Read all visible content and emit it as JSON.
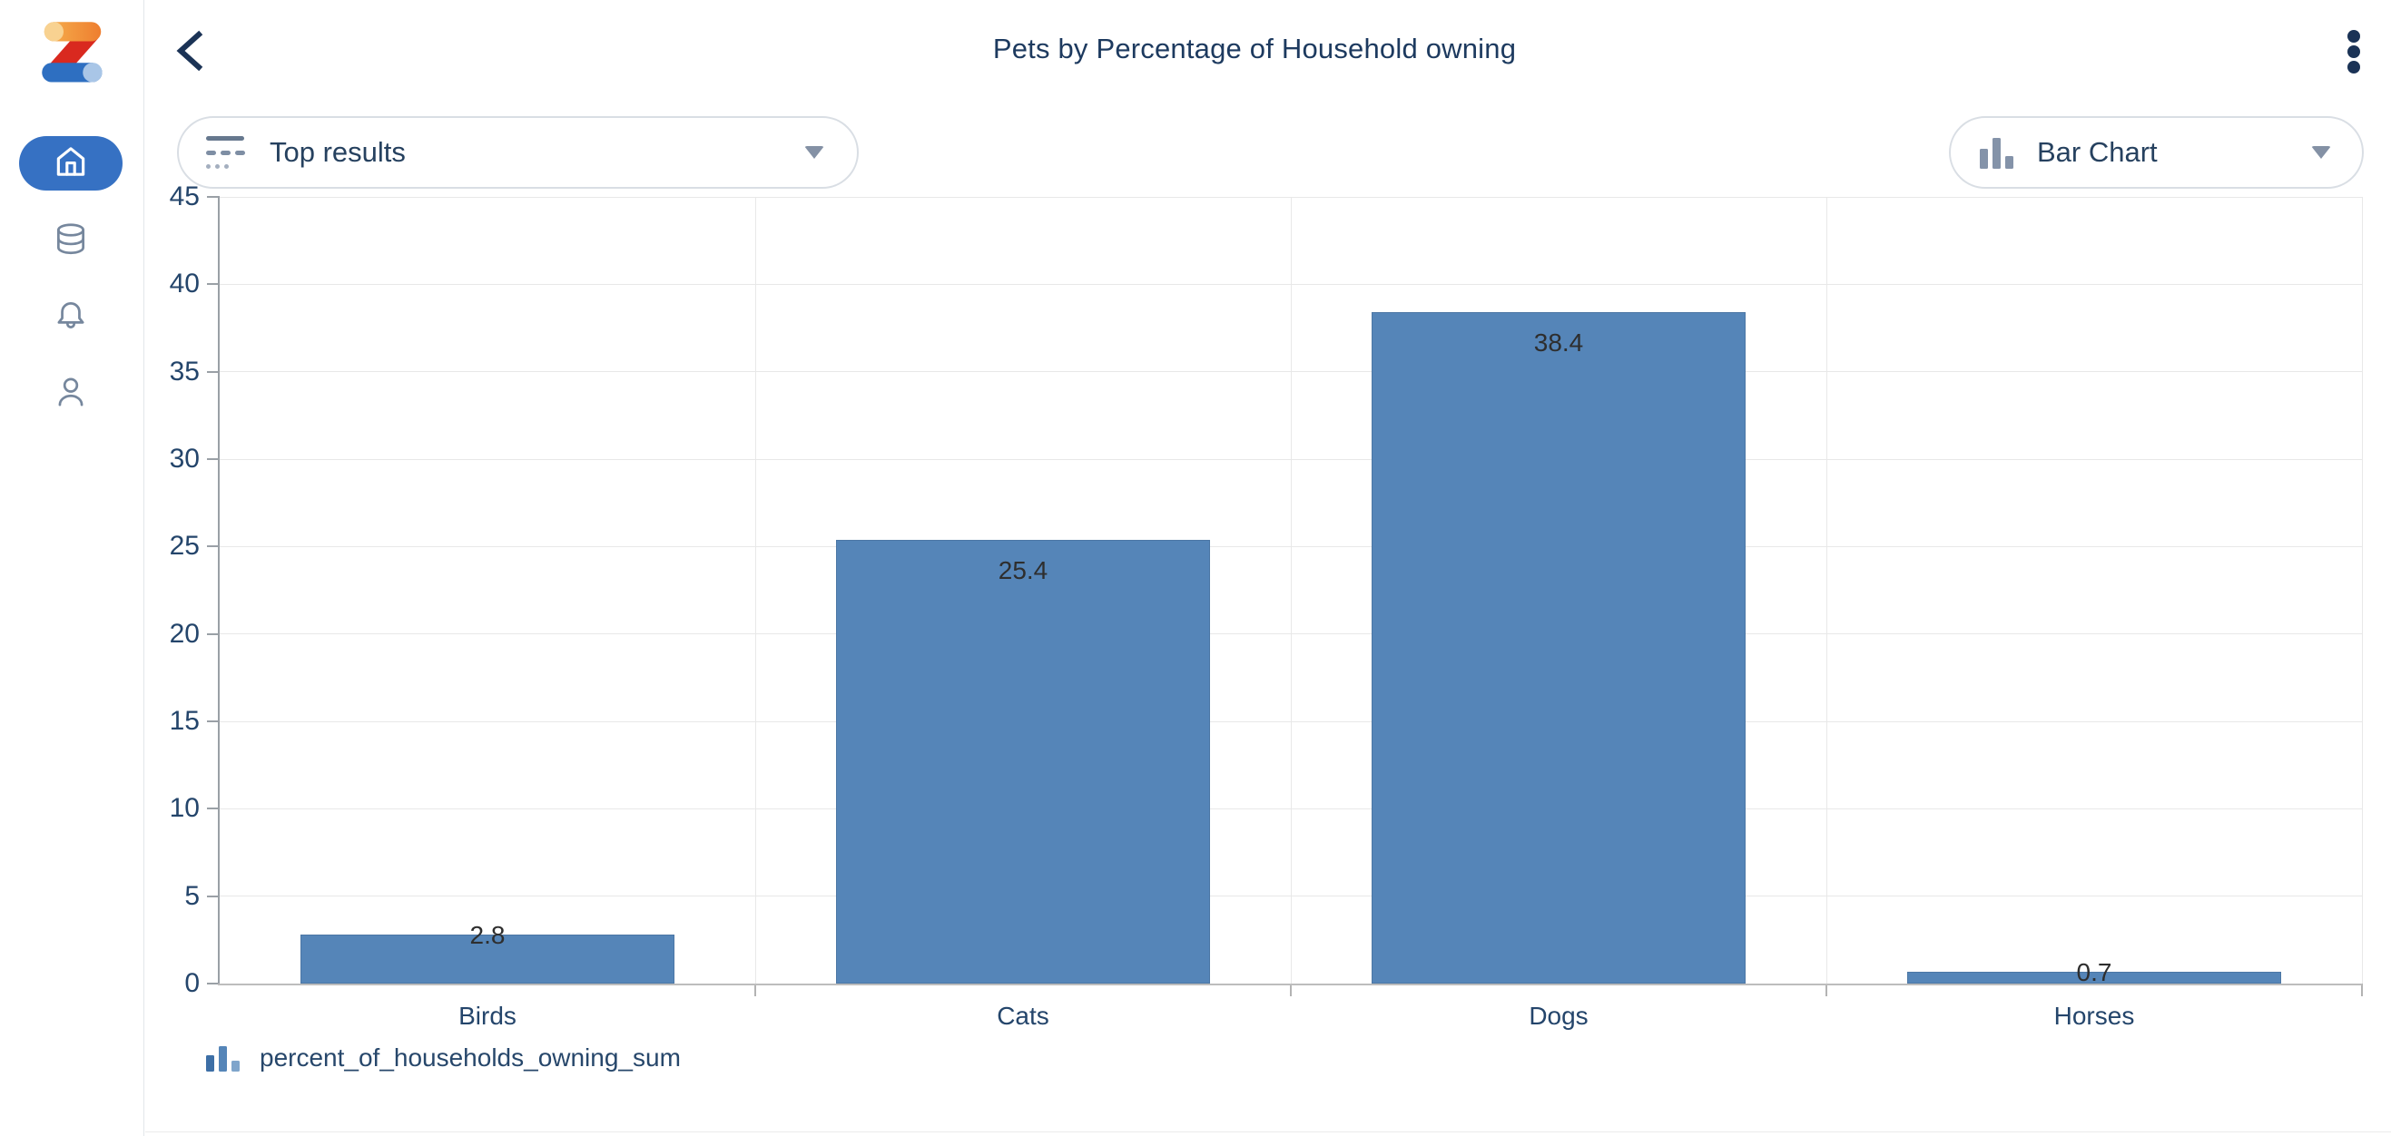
{
  "app": {
    "name": "Zing Data"
  },
  "header": {
    "title": "Pets by Percentage of Household owning",
    "back_icon": "chevron-left",
    "menu_icon": "kebab-vertical"
  },
  "sidebar": {
    "items": [
      {
        "id": "home",
        "icon": "home-icon",
        "active": true
      },
      {
        "id": "data-sources",
        "icon": "database-icon",
        "active": false
      },
      {
        "id": "notifications",
        "icon": "bell-icon",
        "active": false
      },
      {
        "id": "profile",
        "icon": "person-icon",
        "active": false
      }
    ]
  },
  "controls": {
    "results_dropdown": {
      "label": "Top results",
      "icon": "top-results-icon",
      "caret": "chevron-down-icon"
    },
    "chart_type_dropdown": {
      "label": "Bar Chart",
      "icon": "bar-chart-icon",
      "caret": "chevron-down-icon"
    }
  },
  "chart_data": {
    "type": "bar",
    "title": "Pets by Percentage of Household owning",
    "categories": [
      "Birds",
      "Cats",
      "Dogs",
      "Horses"
    ],
    "values": [
      2.8,
      25.4,
      38.4,
      0.7
    ],
    "series_name": "percent_of_households_owning_sum",
    "xlabel": "",
    "ylabel": "",
    "ylim": [
      0,
      45
    ],
    "ytick_step": 5,
    "grid": true,
    "value_labels": true,
    "legend_position": "bottom-left",
    "bar_color": "#5585b8"
  },
  "legend": {
    "label": "percent_of_households_owning_sum",
    "icon": "bar-chart-icon"
  },
  "colors": {
    "accent_blue": "#3671c3",
    "bar_fill": "#5585b8",
    "navy_text": "#1d3a5f",
    "icon_gray": "#76879d",
    "grid_line": "#e8e8e8"
  }
}
